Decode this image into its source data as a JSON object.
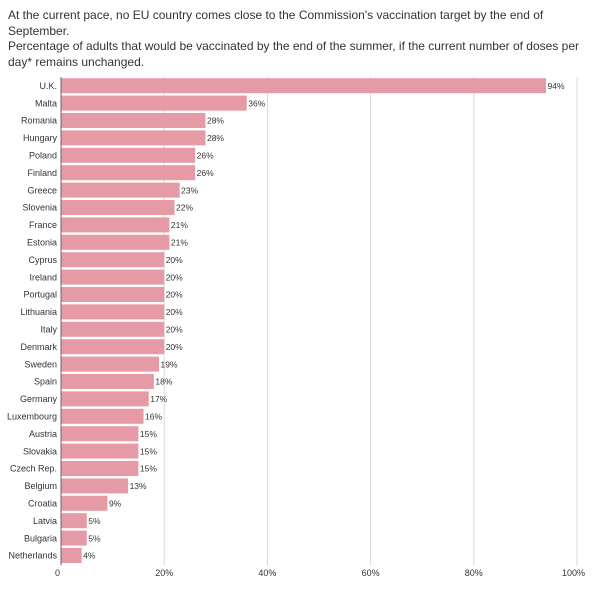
{
  "header": {
    "headline": "At the current pace, no EU country comes close to the Commission's vaccination target by the end of September.",
    "subhead": "Percentage of adults that would be vaccinated by the end of the summer, if the current number of doses per day* remains unchanged."
  },
  "colors": {
    "bar": "#e59aa6",
    "grid": "#d9d9d9",
    "axis": "#666666"
  },
  "chart_data": {
    "type": "bar",
    "orientation": "horizontal",
    "categories": [
      "U.K.",
      "Malta",
      "Romania",
      "Hungary",
      "Poland",
      "Finland",
      "Greece",
      "Slovenia",
      "France",
      "Estonia",
      "Cyprus",
      "Ireland",
      "Portugal",
      "Lithuania",
      "Italy",
      "Denmark",
      "Sweden",
      "Spain",
      "Germany",
      "Luxembourg",
      "Austria",
      "Slovakia",
      "Czech Rep.",
      "Belgium",
      "Croatia",
      "Latvia",
      "Bulgaria",
      "Netherlands"
    ],
    "values": [
      94,
      36,
      28,
      28,
      26,
      26,
      23,
      22,
      21,
      21,
      20,
      20,
      20,
      20,
      20,
      20,
      19,
      18,
      17,
      16,
      15,
      15,
      15,
      13,
      9,
      5,
      5,
      4
    ],
    "value_labels": [
      "94%",
      "36%",
      "28%",
      "28%",
      "26%",
      "26%",
      "23%",
      "22%",
      "21%",
      "21%",
      "20%",
      "20%",
      "20%",
      "20%",
      "20%",
      "20%",
      "19%",
      "18%",
      "17%",
      "16%",
      "15%",
      "15%",
      "15%",
      "13%",
      "9%",
      "5%",
      "5%",
      "4%"
    ],
    "xlim": [
      0,
      100
    ],
    "xticks": [
      0,
      20,
      40,
      60,
      80,
      100
    ],
    "xtick_labels": [
      "0",
      "20%",
      "40%",
      "60%",
      "80%",
      "100%"
    ],
    "grid": true
  }
}
